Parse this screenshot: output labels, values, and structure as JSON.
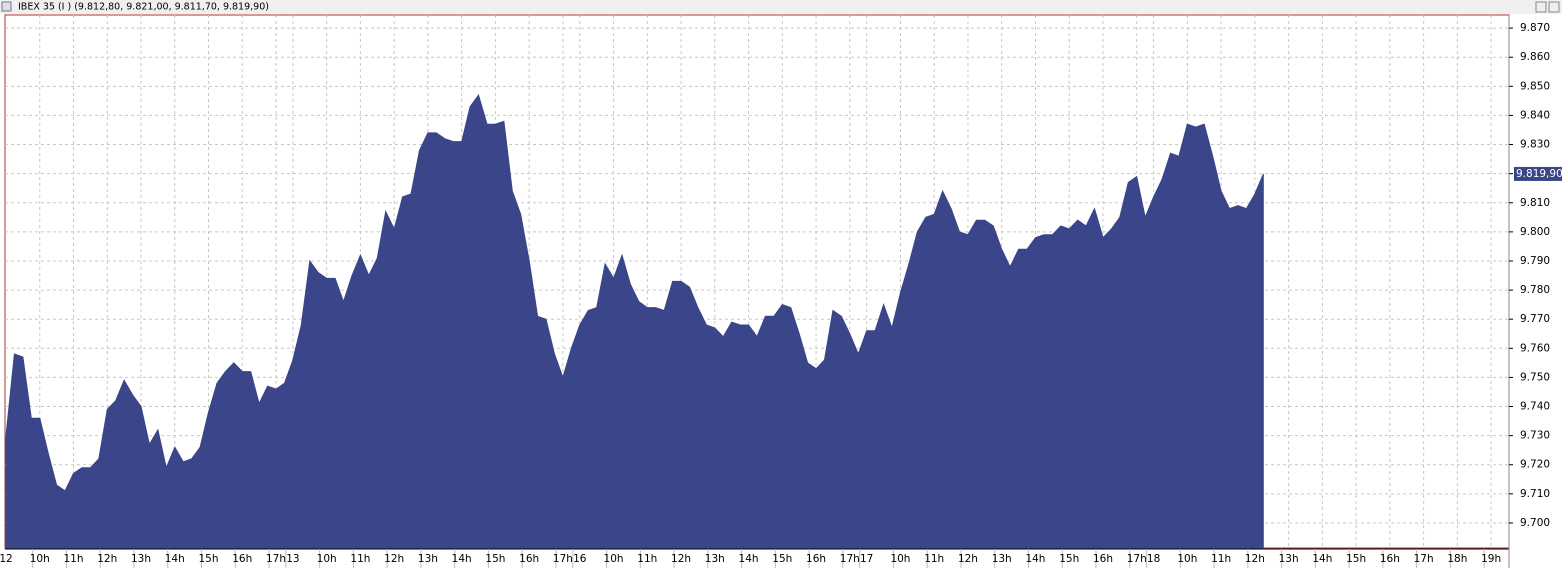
{
  "chart_data": {
    "type": "area",
    "title": "IBEX 35 (I ) (9.812,80, 9.821,00, 9.811,70, 9.819,90)",
    "last_value_label": "9.819,90",
    "color": "#3b4589",
    "grid": true,
    "ylim": [
      9691.4,
      9874.5
    ],
    "yticks": [
      {
        "value": 9700,
        "label": "9.700"
      },
      {
        "value": 9710,
        "label": "9.710"
      },
      {
        "value": 9720,
        "label": "9.720"
      },
      {
        "value": 9730,
        "label": "9.730"
      },
      {
        "value": 9740,
        "label": "9.740"
      },
      {
        "value": 9750,
        "label": "9.750"
      },
      {
        "value": 9760,
        "label": "9.760"
      },
      {
        "value": 9770,
        "label": "9.770"
      },
      {
        "value": 9780,
        "label": "9.780"
      },
      {
        "value": 9790,
        "label": "9.790"
      },
      {
        "value": 9800,
        "label": "9.800"
      },
      {
        "value": 9810,
        "label": "9.810"
      },
      {
        "value": 9820,
        "label": "9.820"
      },
      {
        "value": 9830,
        "label": "9.830"
      },
      {
        "value": 9840,
        "label": "9.840"
      },
      {
        "value": 9850,
        "label": "9.850"
      },
      {
        "value": 9860,
        "label": "9.860"
      },
      {
        "value": 9870,
        "label": "9.870"
      }
    ],
    "categories": [
      "12",
      null,
      null,
      null,
      "10h",
      null,
      null,
      null,
      "11h",
      null,
      null,
      null,
      "12h",
      null,
      null,
      null,
      "13h",
      null,
      null,
      null,
      "14h",
      null,
      null,
      null,
      "15h",
      null,
      null,
      null,
      "16h",
      null,
      null,
      null,
      "17h",
      null,
      "13",
      null,
      null,
      null,
      "10h",
      null,
      null,
      null,
      "11h",
      null,
      null,
      null,
      "12h",
      null,
      null,
      null,
      "13h",
      null,
      null,
      null,
      "14h",
      null,
      null,
      null,
      "15h",
      null,
      null,
      null,
      "16h",
      null,
      null,
      null,
      "17h",
      null,
      "16",
      null,
      null,
      null,
      "10h",
      null,
      null,
      null,
      "11h",
      null,
      null,
      null,
      "12h",
      null,
      null,
      null,
      "13h",
      null,
      null,
      null,
      "14h",
      null,
      null,
      null,
      "15h",
      null,
      null,
      null,
      "16h",
      null,
      null,
      null,
      "17h",
      null,
      "17",
      null,
      null,
      null,
      "10h",
      null,
      null,
      null,
      "11h",
      null,
      null,
      null,
      "12h",
      null,
      null,
      null,
      "13h",
      null,
      null,
      null,
      "14h",
      null,
      null,
      null,
      "15h",
      null,
      null,
      null,
      "16h",
      null,
      null,
      null,
      "17h",
      null,
      "18",
      null,
      null,
      null,
      "10h",
      null,
      null,
      null,
      "11h",
      null,
      null,
      null,
      "12h",
      null,
      null,
      null,
      "13h",
      null,
      null,
      null,
      "14h",
      null,
      null,
      null,
      "15h",
      null,
      null,
      null,
      "16h",
      null,
      null,
      null,
      "17h",
      null,
      null,
      null,
      "18h",
      null,
      null,
      null,
      "19h",
      null
    ],
    "values": [
      9730,
      9758,
      9757,
      9736,
      9736,
      9724,
      9713,
      9711,
      9717,
      9719,
      9719,
      9722,
      9739,
      9742,
      9749,
      9744,
      9740,
      9727,
      9732,
      9719,
      9726,
      9721,
      9722,
      9726,
      9738,
      9748,
      9752,
      9755,
      9752,
      9752,
      9741,
      9747,
      9746,
      9748,
      9756,
      9768,
      9790,
      9786,
      9784,
      9784,
      9776,
      9785,
      9792,
      9785,
      9791,
      9807,
      9801,
      9812,
      9813,
      9828,
      9834,
      9834,
      9832,
      9831,
      9831,
      9843,
      9847,
      9837,
      9837,
      9838,
      9814,
      9806,
      9790,
      9771,
      9770,
      9758,
      9750,
      9760,
      9768,
      9773,
      9774,
      9789,
      9784,
      9792,
      9782,
      9776,
      9774,
      9774,
      9773,
      9783,
      9783,
      9781,
      9774,
      9768,
      9767,
      9764,
      9769,
      9768,
      9768,
      9764,
      9771,
      9771,
      9775,
      9774,
      9765,
      9755,
      9753,
      9756,
      9773,
      9771,
      9765,
      9758,
      9766,
      9766,
      9775,
      9767,
      9779,
      9789,
      9800,
      9805,
      9806,
      9814,
      9808,
      9800,
      9799,
      9804,
      9804,
      9802,
      9794,
      9788,
      9794,
      9794,
      9798,
      9799,
      9799,
      9802,
      9801,
      9804,
      9802,
      9808,
      9798,
      9801,
      9805,
      9817,
      9819,
      9805,
      9812,
      9818,
      9827,
      9826,
      9837,
      9836,
      9837,
      9826,
      9814,
      9808,
      9809,
      9808,
      9813,
      9819.9,
      null,
      null,
      null,
      null,
      null,
      null,
      null,
      null,
      null,
      null,
      null,
      null,
      null,
      null,
      null,
      null,
      null,
      null,
      null,
      null,
      null,
      null,
      null,
      null,
      null,
      null,
      null,
      null
    ]
  }
}
